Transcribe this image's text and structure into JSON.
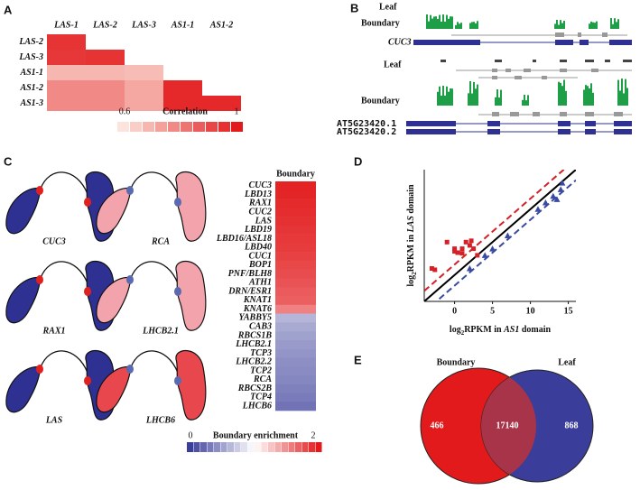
{
  "panel_labels": [
    "A",
    "B",
    "C",
    "D",
    "E"
  ],
  "chart_data": [
    {
      "type": "heatmap",
      "columns": [
        "LAS-1",
        "LAS-2",
        "LAS-3",
        "AS1-1",
        "AS1-2"
      ],
      "rows": [
        "LAS-2",
        "LAS-3",
        "AS1-1",
        "AS1-2",
        "AS1-3"
      ],
      "values": [
        [
          0.95
        ],
        [
          0.94,
          0.95
        ],
        [
          0.69,
          0.69,
          0.68
        ],
        [
          0.78,
          0.78,
          0.72,
          0.97
        ],
        [
          0.78,
          0.78,
          0.72,
          0.97,
          0.97
        ]
      ],
      "colors": [
        "#fce4dc",
        "#e31a1c"
      ],
      "clim": [
        0.6,
        1
      ],
      "cbar_ticks": [
        0.6,
        1
      ],
      "cbar_label": "Correlation"
    },
    {
      "type": "column-heatmap",
      "title": "Boundary",
      "categories": [
        "CUC3",
        "LBD13",
        "RAX1",
        "CUC2",
        "LAS",
        "LBD19",
        "LBD16/ASL18",
        "LBD40",
        "CUC1",
        "BOP1",
        "PNF/BLH8",
        "ATH1",
        "DRN/ESR1",
        "KNAT1",
        "KNAT6",
        "YABBY5",
        "CAB3",
        "RBCS1B",
        "LHCB2.1",
        "TCP3",
        "LHCB2.2",
        "TCP2",
        "RCA",
        "RBCS2B",
        "TCP4",
        "LHCB6"
      ],
      "values": [
        1.96,
        1.95,
        1.93,
        1.92,
        1.9,
        1.88,
        1.87,
        1.85,
        1.83,
        1.8,
        1.78,
        1.75,
        1.72,
        1.7,
        1.55,
        0.62,
        0.56,
        0.52,
        0.48,
        0.45,
        0.42,
        0.4,
        0.38,
        0.35,
        0.32,
        0.28
      ],
      "colors": [
        "#3a3d99",
        "#ffffff",
        "#e31a1c"
      ],
      "clim": [
        0,
        2
      ],
      "cbar_ticks": [
        0,
        2
      ],
      "cbar_label": "Boundary enrichment"
    },
    {
      "type": "scatter",
      "xlabel": [
        "log",
        "2",
        "RPKM in ",
        "AS1",
        " domain"
      ],
      "ylabel": [
        "log",
        "2",
        "RPKM in ",
        "LAS",
        " domain"
      ],
      "xlim": [
        -4,
        16
      ],
      "ylim": [
        -4,
        16
      ],
      "xticks": [
        0,
        5,
        10,
        15
      ],
      "series": [
        {
          "color": "#d42027",
          "marker": "square",
          "x": [
            -3,
            -2.6,
            -1,
            0,
            0.4,
            1,
            1.5,
            2,
            2.5,
            3,
            0,
            1,
            2.2
          ],
          "y": [
            1,
            0.8,
            5,
            4,
            3.4,
            4,
            5,
            4.5,
            4,
            3,
            3.6,
            3.3,
            5.2
          ]
        },
        {
          "color": "#3a4aa0",
          "marker": "triangle",
          "x": [
            2,
            4,
            5,
            7,
            11,
            12,
            13,
            13.5,
            14,
            14.2
          ],
          "y": [
            1,
            3,
            4,
            6,
            10,
            11,
            12,
            11.5,
            13,
            14
          ]
        }
      ],
      "reference_lines": [
        {
          "offset": 0,
          "color": "#000000",
          "dashed": false
        },
        {
          "offset": 1.6,
          "color": "#d42027",
          "dashed": true
        },
        {
          "offset": -1.6,
          "color": "#3a4aa0",
          "dashed": true
        }
      ]
    },
    {
      "type": "venn",
      "sets": [
        "Boundary",
        "Leaf"
      ],
      "values": [
        466,
        17140,
        868
      ],
      "colors": [
        "#e31a1c",
        "#a8344a",
        "#3a3d99"
      ]
    }
  ],
  "browser": {
    "top": {
      "track1": "Leaf",
      "track2": "Boundary",
      "gene": "CUC3"
    },
    "bottom": {
      "track1": "Leaf",
      "track2": "Boundary",
      "genes": [
        "AT5G23420.1",
        "AT5G23420.2"
      ]
    }
  },
  "leaf_diagrams": [
    {
      "name": "CUC3",
      "blade": "#2e3192",
      "boundary": "#e0201f"
    },
    {
      "name": "RCA",
      "blade": "#f2a3ab",
      "boundary": "#5a6ab0"
    },
    {
      "name": "RAX1",
      "blade": "#2e3192",
      "boundary": "#e0201f"
    },
    {
      "name": "LHCB2.1",
      "blade": "#f2a3ab",
      "boundary": "#5a6ab0"
    },
    {
      "name": "LAS",
      "blade": "#2e3192",
      "boundary": "#e0201f"
    },
    {
      "name": "LHCB6",
      "blade": "#e8474d",
      "boundary": "#5a6ab0"
    }
  ]
}
